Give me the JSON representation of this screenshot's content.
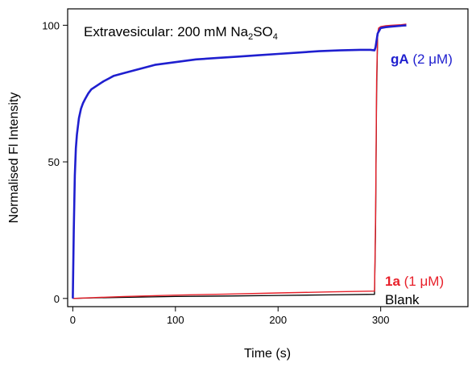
{
  "chart_data": {
    "type": "line",
    "title": "",
    "annotation": {
      "prefix": "Extravesicular: 200 mM Na",
      "sub1": "2",
      "mid": "SO",
      "sub2": "4"
    },
    "xlabel": "Time (s)",
    "ylabel": "Normalised Fl Intensity",
    "xlim": [
      -5,
      385
    ],
    "ylim": [
      -3,
      106
    ],
    "xticks": [
      0,
      100,
      200,
      300
    ],
    "yticks": [
      0,
      50,
      100
    ],
    "grid": false,
    "legend": "inline labels at right end of curves",
    "series": [
      {
        "name": "gA",
        "label_bold": "gA",
        "label_rest": " (2 μM)",
        "color": "#1f1fcf",
        "width": 2.6,
        "x": [
          0,
          1,
          2,
          3,
          4,
          6,
          8,
          10,
          12,
          15,
          18,
          22,
          26,
          30,
          35,
          40,
          50,
          60,
          70,
          80,
          100,
          120,
          140,
          160,
          180,
          200,
          220,
          240,
          260,
          280,
          290,
          294,
          295,
          297,
          300,
          305,
          310,
          320,
          325
        ],
        "y": [
          0,
          25,
          45,
          55,
          60,
          66,
          69.5,
          71.5,
          73,
          75,
          76.5,
          77.5,
          78.5,
          79.5,
          80.5,
          81.5,
          82.5,
          83.5,
          84.5,
          85.5,
          86.5,
          87.5,
          88,
          88.5,
          89,
          89.5,
          90,
          90.5,
          90.8,
          91,
          91,
          90.8,
          92,
          97,
          99,
          99.3,
          99.5,
          99.8,
          100
        ]
      },
      {
        "name": "1a",
        "label_bold": "1a",
        "label_rest": " (1 μM)",
        "color": "#e8202a",
        "width": 1.4,
        "x": [
          0,
          20,
          50,
          100,
          150,
          200,
          250,
          294,
          295,
          296,
          297,
          298,
          300,
          305,
          310,
          320,
          325
        ],
        "y": [
          0,
          0.3,
          0.7,
          1.2,
          1.6,
          2.0,
          2.4,
          2.7,
          30,
          80,
          97,
          99,
          99.5,
          99.8,
          100,
          100.2,
          100.4
        ]
      },
      {
        "name": "Blank",
        "label_bold": "",
        "label_rest": "Blank",
        "color": "#000000",
        "width": 1.3,
        "x": [
          0,
          20,
          50,
          100,
          150,
          200,
          250,
          294,
          295,
          296,
          297,
          298,
          300,
          305,
          310,
          320,
          325
        ],
        "y": [
          0,
          0.2,
          0.4,
          0.7,
          0.9,
          1.1,
          1.3,
          1.5,
          25,
          75,
          96,
          98.5,
          99,
          99.3,
          99.5,
          99.7,
          99.8
        ]
      }
    ]
  }
}
